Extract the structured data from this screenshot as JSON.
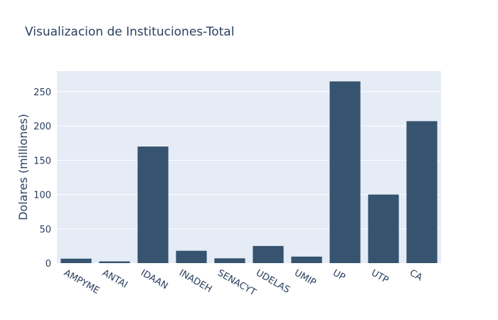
{
  "chart_data": {
    "type": "bar",
    "title": "Visualizacion de Instituciones-Total",
    "xlabel": "",
    "ylabel": "Dolares (milliones)",
    "categories": [
      "AMPYME",
      "ANTAI",
      "IDAAN",
      "INADEH",
      "SENACYT",
      "UDELAS",
      "UMIP",
      "UP",
      "UTP",
      "CA"
    ],
    "values": [
      6.5,
      2.5,
      170,
      18,
      7,
      25,
      9.5,
      265,
      100,
      207
    ],
    "ylim": [
      0,
      280
    ],
    "yticks": [
      0,
      50,
      100,
      150,
      200,
      250
    ],
    "grid": true,
    "colors": {
      "bar": "#36536f",
      "plot_bg": "#e5ecf6",
      "grid": "#ffffff",
      "text": "#2a3f5f"
    }
  }
}
